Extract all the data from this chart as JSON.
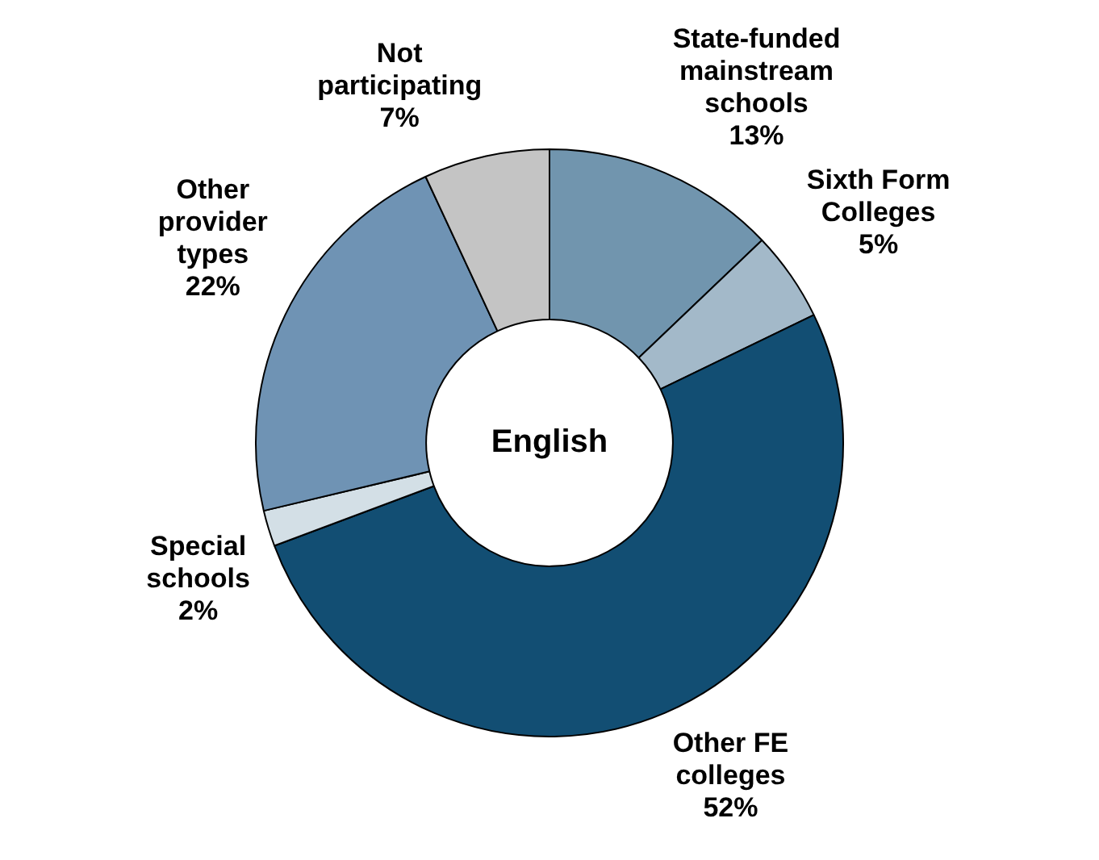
{
  "chart_data": {
    "type": "donut",
    "title": "English",
    "categories": [
      "State-funded mainstream schools",
      "Sixth Form Colleges",
      "Other FE colleges",
      "Special schools",
      "Other provider types",
      "Not participating"
    ],
    "values": [
      13,
      5,
      52,
      2,
      22,
      7
    ],
    "colors": [
      "#7195ae",
      "#a3b9c9",
      "#124e73",
      "#d3dfe6",
      "#6f93b4",
      "#c4c4c4"
    ],
    "value_labels": [
      "13%",
      "5%",
      "52%",
      "2%",
      "22%",
      "7%"
    ],
    "legend": false
  }
}
